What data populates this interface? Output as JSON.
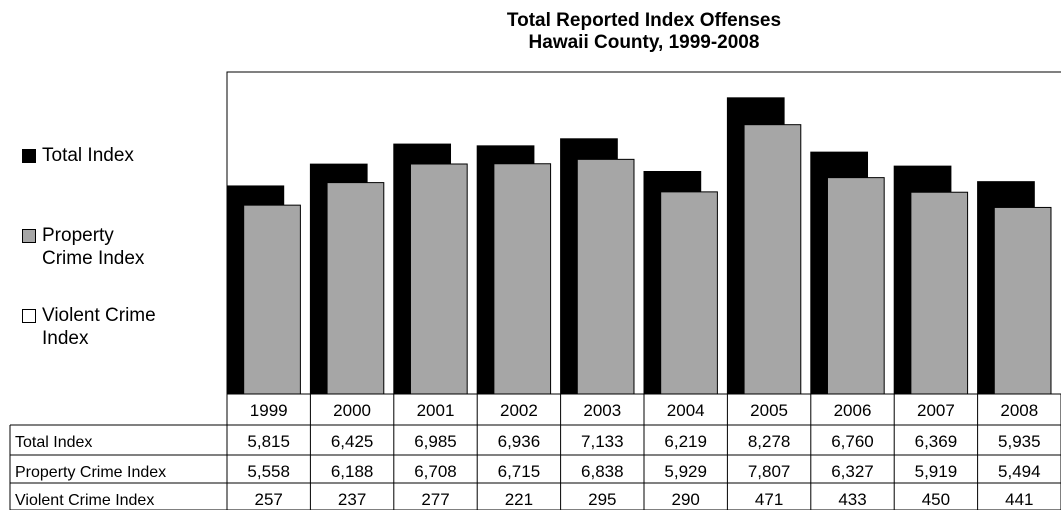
{
  "chart_data": {
    "type": "bar",
    "title": "Total Reported Index Offenses",
    "subtitle": "Hawaii County, 1999-2008",
    "categories": [
      "1999",
      "2000",
      "2001",
      "2002",
      "2003",
      "2004",
      "2005",
      "2006",
      "2007",
      "2008"
    ],
    "series": [
      {
        "name": "Total Index",
        "table_label": "Total Index",
        "color": "#000000",
        "values": [
          5815,
          6425,
          6985,
          6936,
          7133,
          6219,
          8278,
          6760,
          6369,
          5935
        ],
        "display": [
          "5,815",
          "6,425",
          "6,985",
          "6,936",
          "7,133",
          "6,219",
          "8,278",
          "6,760",
          "6,369",
          "5,935"
        ]
      },
      {
        "name": "Property Crime Index",
        "table_label": "Property Crime Index",
        "color": "#a6a6a6",
        "values": [
          5558,
          6188,
          6708,
          6715,
          6838,
          5929,
          7807,
          6327,
          5919,
          5494
        ],
        "display": [
          "5,558",
          "6,188",
          "6,708",
          "6,715",
          "6,838",
          "5,929",
          "7,807",
          "6,327",
          "5,919",
          "5,494"
        ]
      },
      {
        "name": "Violent Crime Index",
        "table_label": "Violent Crime Index",
        "color": "#ffffff",
        "values": [
          257,
          237,
          277,
          221,
          295,
          290,
          471,
          433,
          450,
          441
        ],
        "display": [
          "257",
          "237",
          "277",
          "221",
          "295",
          "290",
          "471",
          "433",
          "450",
          "441"
        ]
      }
    ],
    "legend": {
      "position": "left",
      "entries": [
        {
          "lines": [
            "Total Index"
          ],
          "color": "#000000"
        },
        {
          "lines": [
            "Property",
            "Crime Index"
          ],
          "color": "#a6a6a6"
        },
        {
          "lines": [
            "Violent Crime",
            "Index"
          ],
          "color": "#ffffff"
        }
      ]
    },
    "data_table": true,
    "grid": false
  }
}
